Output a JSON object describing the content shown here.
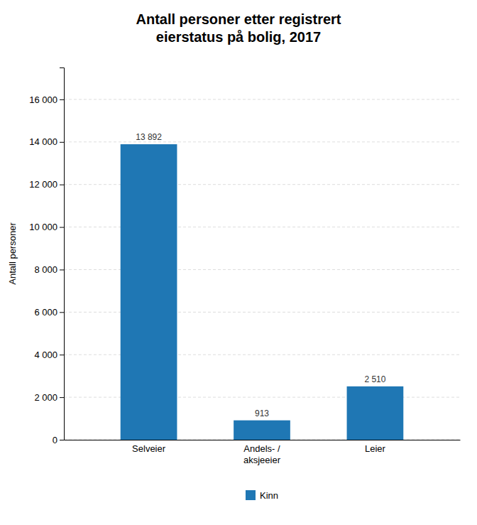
{
  "chart_data": {
    "type": "bar",
    "title": "Antall personer etter registrert\neierstatus på bolig, 2017",
    "categories": [
      "Selveier",
      "Andels- /\naksjeeier",
      "Leier"
    ],
    "series": [
      {
        "name": "Kinn",
        "values": [
          13892,
          913,
          2510
        ],
        "value_labels": [
          "13 892",
          "913",
          "2 510"
        ]
      }
    ],
    "ylabel": "Antall personer",
    "ylim": [
      0,
      17500
    ],
    "yticks": [
      0,
      {
        "value": 2000,
        "label": "2 000"
      },
      {
        "value": 4000,
        "label": "4 000"
      },
      {
        "value": 6000,
        "label": "6 000"
      },
      {
        "value": 8000,
        "label": "8 000"
      },
      {
        "value": 10000,
        "label": "10 000"
      },
      {
        "value": 12000,
        "label": "12 000"
      },
      {
        "value": 14000,
        "label": "14 000"
      },
      {
        "value": 16000,
        "label": "16 000"
      }
    ],
    "grid": true,
    "legend": "bottom",
    "data_labels": true
  }
}
